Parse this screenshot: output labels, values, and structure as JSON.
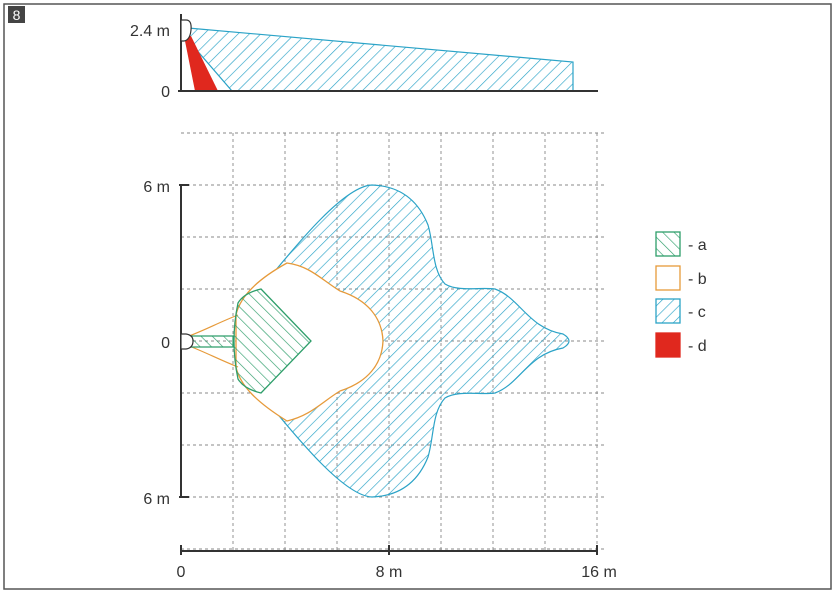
{
  "figure": {
    "number": "8"
  },
  "side_view": {
    "height_label": "2.4 m",
    "zero_label": "0"
  },
  "top_view": {
    "y_label_top": "6 m",
    "y_label_mid": "0",
    "y_label_bottom": "6 m",
    "x_label_0": "0",
    "x_label_8": "8 m",
    "x_label_16": "16 m"
  },
  "legend": {
    "items": [
      {
        "label": "- a",
        "style": "hatch-forward",
        "color": "#2e9e6a"
      },
      {
        "label": "- b",
        "style": "outline",
        "color": "#e69a3a"
      },
      {
        "label": "- c",
        "style": "hatch-back",
        "color": "#2ba3c7"
      },
      {
        "label": "- d",
        "style": "solid",
        "color": "#e0281e"
      }
    ]
  },
  "colors": {
    "zone_a": "#2e9e6a",
    "zone_b": "#e69a3a",
    "zone_c": "#2ba3c7",
    "zone_d": "#e0281e",
    "axis": "#333333",
    "grid": "#888888"
  }
}
